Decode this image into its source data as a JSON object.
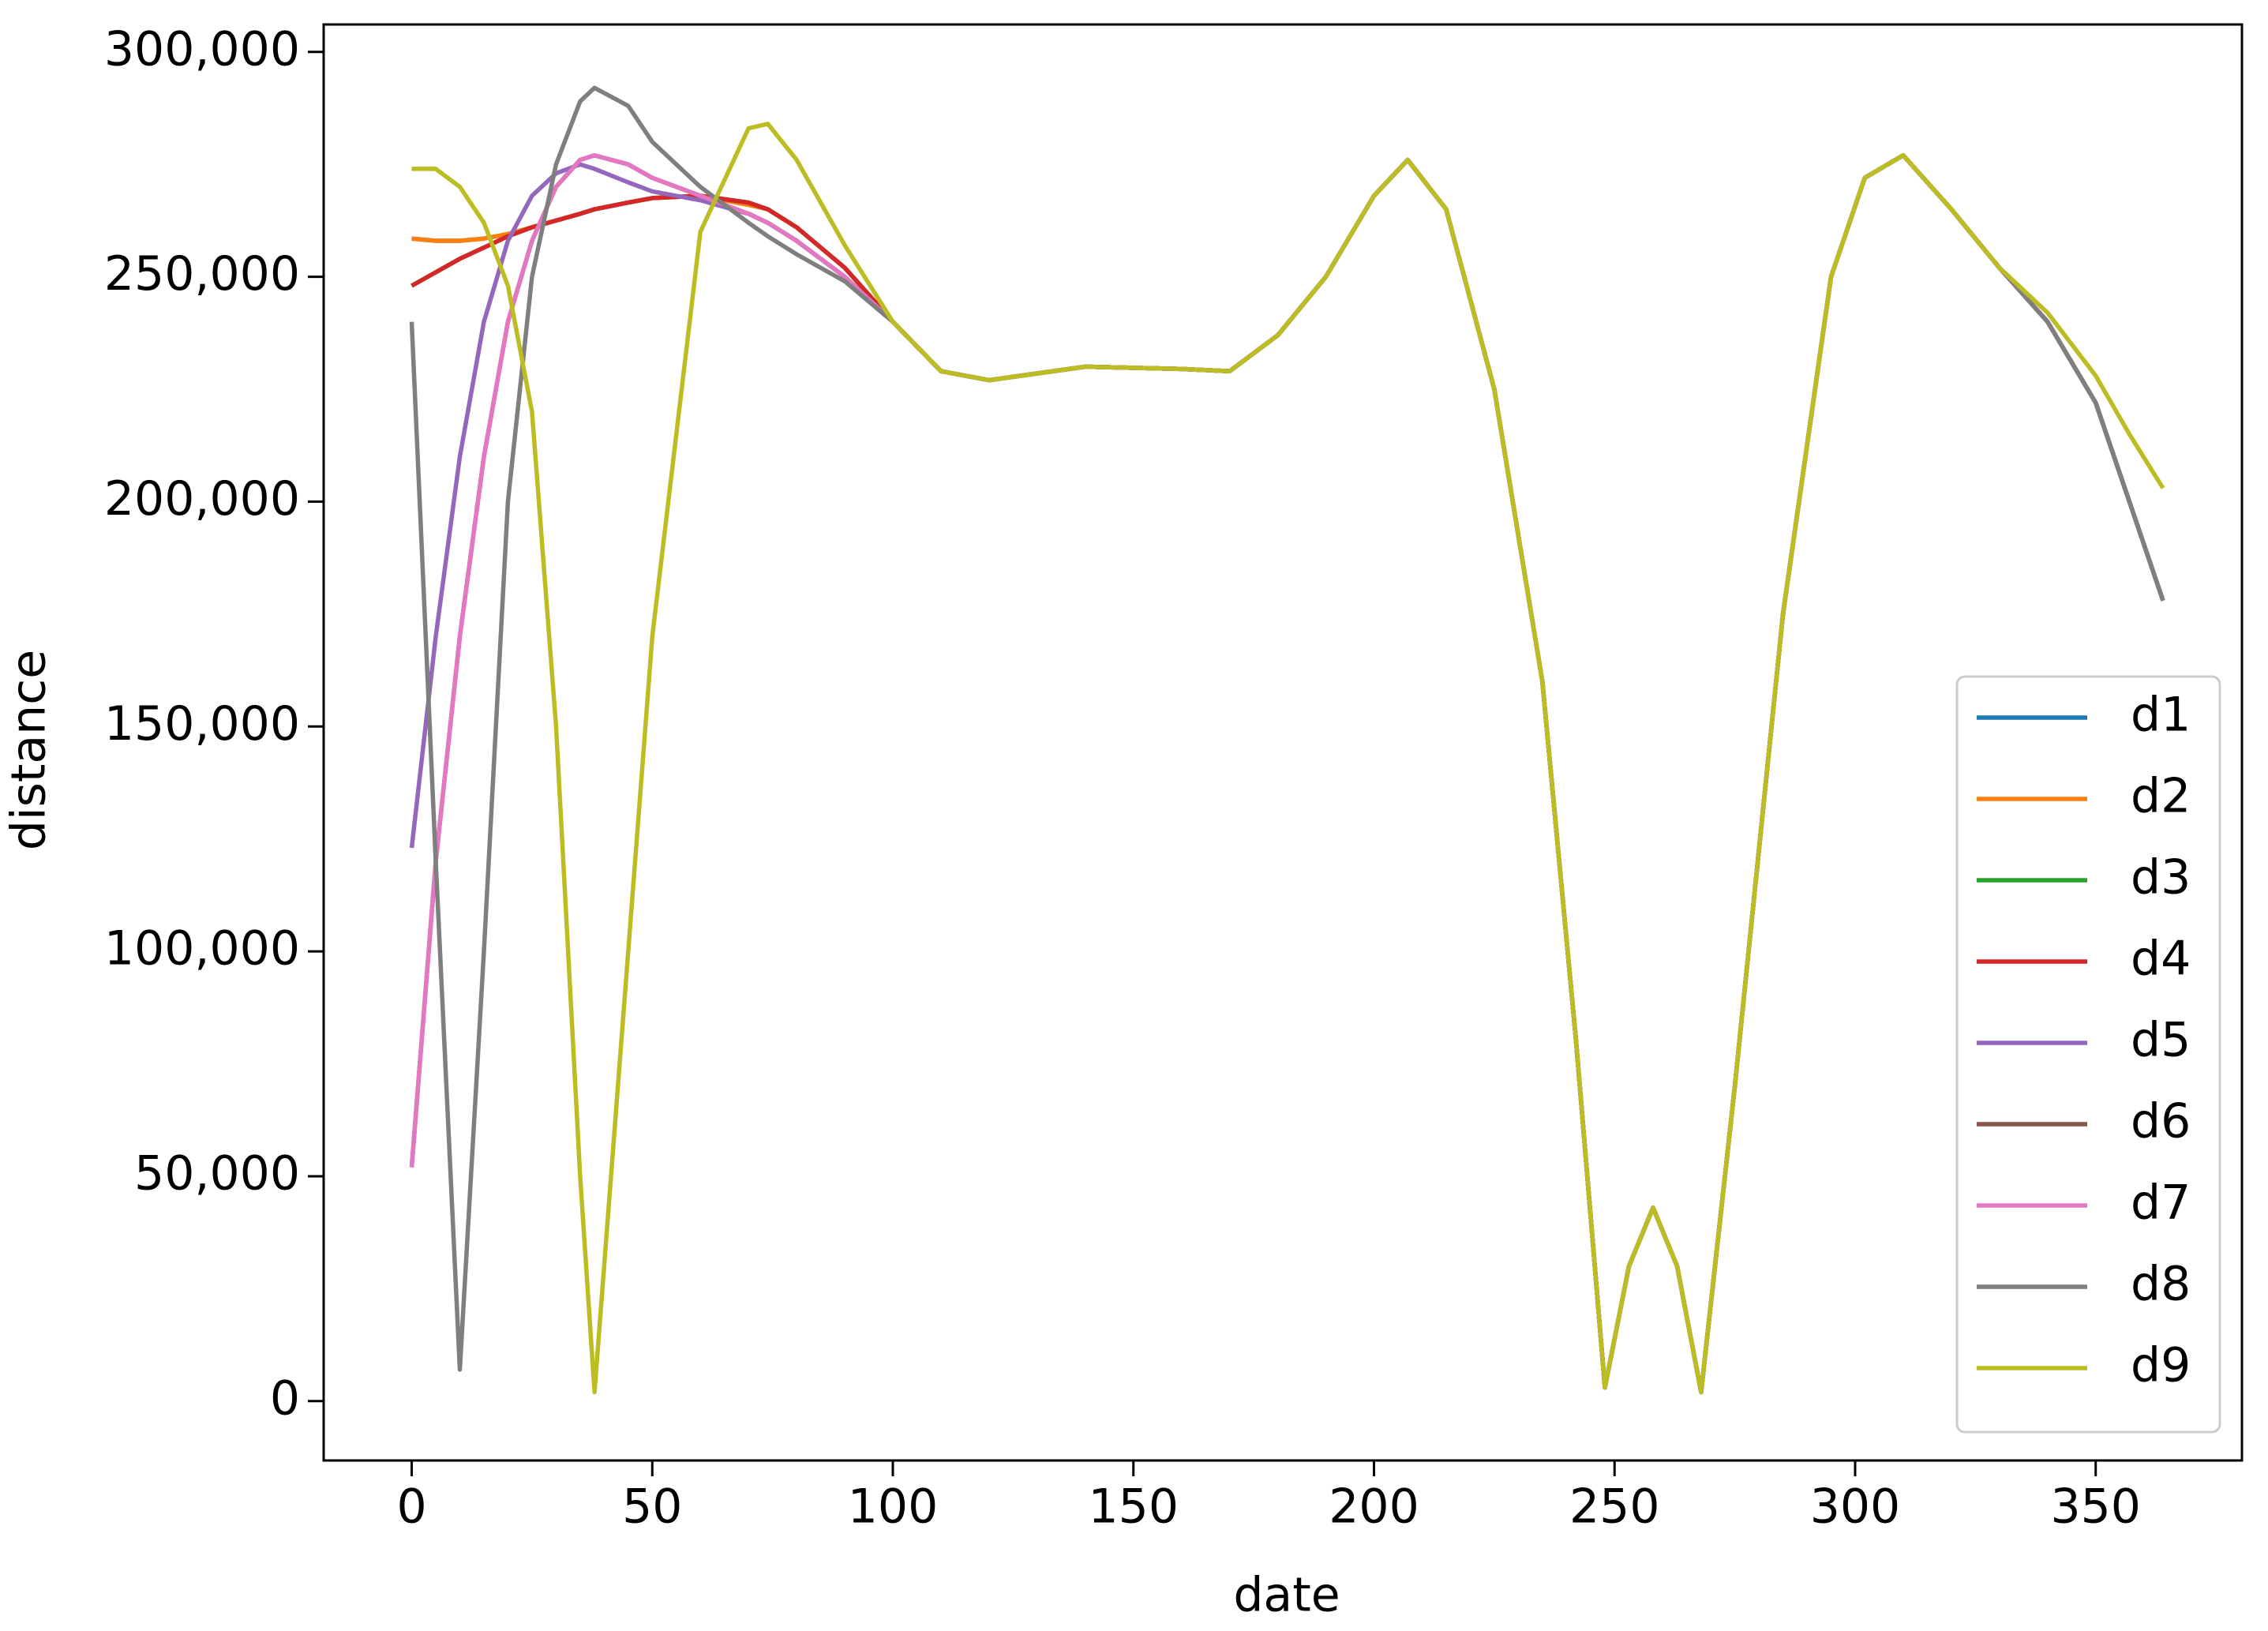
{
  "chart_data": {
    "type": "line",
    "x_label": "date",
    "y_label": "distance",
    "x": [
      0,
      5,
      10,
      15,
      20,
      25,
      30,
      35,
      38,
      45,
      50,
      60,
      70,
      74,
      80,
      90,
      100,
      110,
      120,
      140,
      160,
      170,
      180,
      190,
      200,
      207,
      215,
      225,
      235,
      242,
      248,
      253,
      258,
      263,
      268,
      275,
      285,
      295,
      302,
      310,
      320,
      330,
      340,
      350,
      357,
      364
    ],
    "series": [
      {
        "name": "d1",
        "color": "#1f77b4",
        "values": [
          258500,
          258000,
          258000,
          258500,
          259500,
          261000,
          262500,
          264000,
          265000,
          266500,
          267500,
          268000,
          266000,
          265000,
          261000,
          252000,
          240000,
          229000,
          227000,
          230000,
          229500,
          229000,
          237000,
          250000,
          268000,
          276000,
          265000,
          225000,
          160000,
          80000,
          3000,
          30000,
          43000,
          30000,
          2000,
          70000,
          175000,
          250000,
          272000,
          277000,
          265000,
          252000,
          240000,
          222000,
          200000,
          178000
        ]
      },
      {
        "name": "d2",
        "color": "#ff7f0e",
        "values": [
          258500,
          258000,
          258000,
          258500,
          259500,
          261000,
          262500,
          264000,
          265000,
          266500,
          267500,
          268000,
          266000,
          265000,
          261000,
          252000,
          240000,
          229000,
          227000,
          230000,
          229500,
          229000,
          237000,
          250000,
          268000,
          276000,
          265000,
          225000,
          160000,
          80000,
          3000,
          30000,
          43000,
          30000,
          2000,
          70000,
          175000,
          250000,
          272000,
          277000,
          265000,
          252000,
          240000,
          222000,
          200000,
          178000
        ]
      },
      {
        "name": "d3",
        "color": "#2ca02c",
        "values": [
          248000,
          251000,
          254000,
          256500,
          259000,
          261000,
          262500,
          264000,
          265000,
          266500,
          267500,
          268000,
          266500,
          265000,
          261000,
          252000,
          240000,
          229000,
          227000,
          230000,
          229500,
          229000,
          237000,
          250000,
          268000,
          276000,
          265000,
          225000,
          160000,
          80000,
          3000,
          30000,
          43000,
          30000,
          2000,
          70000,
          175000,
          250000,
          272000,
          277000,
          265000,
          252000,
          240000,
          222000,
          200000,
          178000
        ]
      },
      {
        "name": "d4",
        "color": "#d62728",
        "values": [
          248000,
          251000,
          254000,
          256500,
          259000,
          261000,
          262500,
          264000,
          265000,
          266500,
          267500,
          268000,
          266500,
          265000,
          261000,
          252000,
          240000,
          229000,
          227000,
          230000,
          229500,
          229000,
          237000,
          250000,
          268000,
          276000,
          265000,
          225000,
          160000,
          80000,
          3000,
          30000,
          43000,
          30000,
          2000,
          70000,
          175000,
          250000,
          272000,
          277000,
          265000,
          252000,
          240000,
          222000,
          200000,
          178000
        ]
      },
      {
        "name": "d5",
        "color": "#9467bd",
        "values": [
          123000,
          170000,
          210000,
          240000,
          258000,
          268000,
          273000,
          275000,
          274000,
          271000,
          269000,
          267000,
          264000,
          262000,
          258000,
          250000,
          240000,
          229000,
          227000,
          230000,
          229500,
          229000,
          237000,
          250000,
          268000,
          276000,
          265000,
          225000,
          160000,
          80000,
          3000,
          30000,
          43000,
          30000,
          2000,
          70000,
          175000,
          250000,
          272000,
          277000,
          265000,
          252000,
          240000,
          222000,
          200000,
          178000
        ]
      },
      {
        "name": "d6",
        "color": "#8c564b",
        "values": [
          52000,
          120000,
          170000,
          210000,
          240000,
          258000,
          270000,
          276000,
          277000,
          275000,
          272000,
          268000,
          264000,
          262000,
          258000,
          250000,
          240000,
          229000,
          227000,
          230000,
          229500,
          229000,
          237000,
          250000,
          268000,
          276000,
          265000,
          225000,
          160000,
          80000,
          3000,
          30000,
          43000,
          30000,
          2000,
          70000,
          175000,
          250000,
          272000,
          277000,
          265000,
          252000,
          240000,
          222000,
          200000,
          178000
        ]
      },
      {
        "name": "d7",
        "color": "#e377c2",
        "values": [
          52000,
          120000,
          170000,
          210000,
          240000,
          258000,
          270000,
          276000,
          277000,
          275000,
          272000,
          268000,
          264000,
          262000,
          258000,
          250000,
          240000,
          229000,
          227000,
          230000,
          229500,
          229000,
          237000,
          250000,
          268000,
          276000,
          265000,
          225000,
          160000,
          80000,
          3000,
          30000,
          43000,
          30000,
          2000,
          70000,
          175000,
          250000,
          272000,
          277000,
          265000,
          252000,
          240000,
          222000,
          200000,
          178000
        ]
      },
      {
        "name": "d8",
        "color": "#7f7f7f",
        "values": [
          240000,
          120000,
          7000,
          100000,
          200000,
          250000,
          275000,
          289000,
          292000,
          288000,
          280000,
          270000,
          262000,
          259000,
          255000,
          249000,
          240000,
          229000,
          227000,
          230000,
          229500,
          229000,
          237000,
          250000,
          268000,
          276000,
          265000,
          225000,
          160000,
          80000,
          3000,
          30000,
          43000,
          30000,
          2000,
          70000,
          175000,
          250000,
          272000,
          277000,
          265000,
          252000,
          240000,
          222000,
          200000,
          178000
        ]
      },
      {
        "name": "d9",
        "color": "#bcbd22",
        "values": [
          274000,
          274000,
          270000,
          262000,
          248000,
          220000,
          150000,
          50000,
          2000,
          100000,
          170000,
          260000,
          283000,
          284000,
          276000,
          257000,
          240000,
          229000,
          227000,
          230000,
          229500,
          229000,
          237000,
          250000,
          268000,
          276000,
          265000,
          225000,
          160000,
          80000,
          3000,
          30000,
          43000,
          30000,
          2000,
          70000,
          175000,
          250000,
          272000,
          277000,
          265000,
          252000,
          242000,
          228000,
          215000,
          203000
        ]
      }
    ],
    "xlim": [
      -18.3,
      380.4
    ],
    "ylim": [
      -13200,
      306100
    ],
    "xticks": [
      0,
      50,
      100,
      150,
      200,
      250,
      300,
      350
    ],
    "yticks": [
      0,
      {
        "value": 50000,
        "label": "50,000"
      },
      {
        "value": 100000,
        "label": "100,000"
      },
      {
        "value": 150000,
        "label": "150,000"
      },
      {
        "value": 200000,
        "label": "200,000"
      },
      {
        "value": 250000,
        "label": "250,000"
      },
      {
        "value": 300000,
        "label": "300,000"
      }
    ],
    "legend": "lower right"
  }
}
